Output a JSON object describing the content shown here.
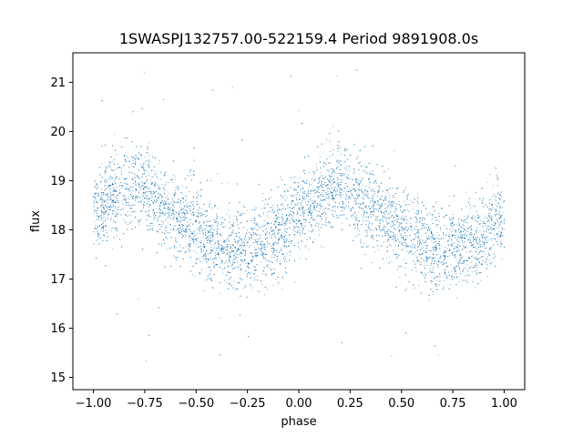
{
  "chart_data": {
    "type": "scatter",
    "title": "1SWASPJ132757.00-522159.4 Period 9891908.0s",
    "xlabel": "phase",
    "ylabel": "flux",
    "xlim": [
      -1.1,
      1.1
    ],
    "ylim": [
      14.75,
      21.6
    ],
    "x_ticks": [
      -1.0,
      -0.75,
      -0.5,
      -0.25,
      0.0,
      0.25,
      0.5,
      0.75,
      1.0
    ],
    "x_tick_labels": [
      "−1.00",
      "−0.75",
      "−0.50",
      "−0.25",
      "0.00",
      "0.25",
      "0.50",
      "0.75",
      "1.00"
    ],
    "y_ticks": [
      15,
      16,
      17,
      18,
      19,
      20,
      21
    ],
    "y_tick_labels": [
      "15",
      "16",
      "17",
      "18",
      "19",
      "20",
      "21"
    ],
    "grid": false,
    "marker_color": "#1f77b4",
    "series": [
      {
        "phase_profile": [
          [
            -1.0,
            18.35
          ],
          [
            -0.9,
            18.7
          ],
          [
            -0.8,
            18.95
          ],
          [
            -0.7,
            18.65
          ],
          [
            -0.6,
            18.3
          ],
          [
            -0.5,
            18.0
          ],
          [
            -0.4,
            17.75
          ],
          [
            -0.3,
            17.55
          ],
          [
            -0.2,
            17.7
          ],
          [
            -0.1,
            17.9
          ],
          [
            0.0,
            18.35
          ],
          [
            0.1,
            18.7
          ],
          [
            0.2,
            18.95
          ],
          [
            0.3,
            18.65
          ],
          [
            0.4,
            18.3
          ],
          [
            0.5,
            18.0
          ],
          [
            0.6,
            17.75
          ],
          [
            0.7,
            17.55
          ],
          [
            0.8,
            17.7
          ],
          [
            0.9,
            17.9
          ],
          [
            1.0,
            18.35
          ]
        ],
        "scatter_sigma": 0.42,
        "outlier_range": [
          15.0,
          21.3
        ],
        "n_points": 9000
      }
    ]
  }
}
